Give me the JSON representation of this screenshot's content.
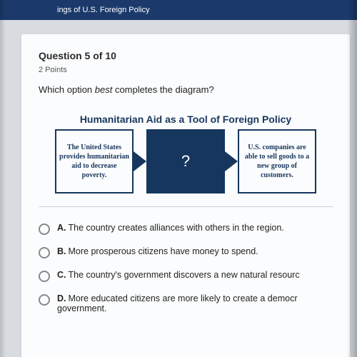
{
  "header": {
    "title_fragment": "ings of U.S. Foreign Policy"
  },
  "question": {
    "number_line": "Question 5 of 10",
    "points_line": "2 Points",
    "prompt_pre": "Which option ",
    "prompt_em": "best",
    "prompt_post": " completes the diagram?"
  },
  "diagram": {
    "title": "Humanitarian Aid as a Tool of Foreign Policy",
    "left": "The United States provides humanitarian aid to decrease poverty.",
    "middle": "?",
    "right": "U.S. companies are able to sell goods to a new group of customers."
  },
  "choices": [
    {
      "letter": "A.",
      "text": "The country creates alliances with others in the region."
    },
    {
      "letter": "B.",
      "text": "More prosperous citizens have money to spend."
    },
    {
      "letter": "C.",
      "text": "The country's government discovers a new natural resourc"
    },
    {
      "letter": "D.",
      "text": "More educated citizens are more likely to create a democr government."
    }
  ]
}
